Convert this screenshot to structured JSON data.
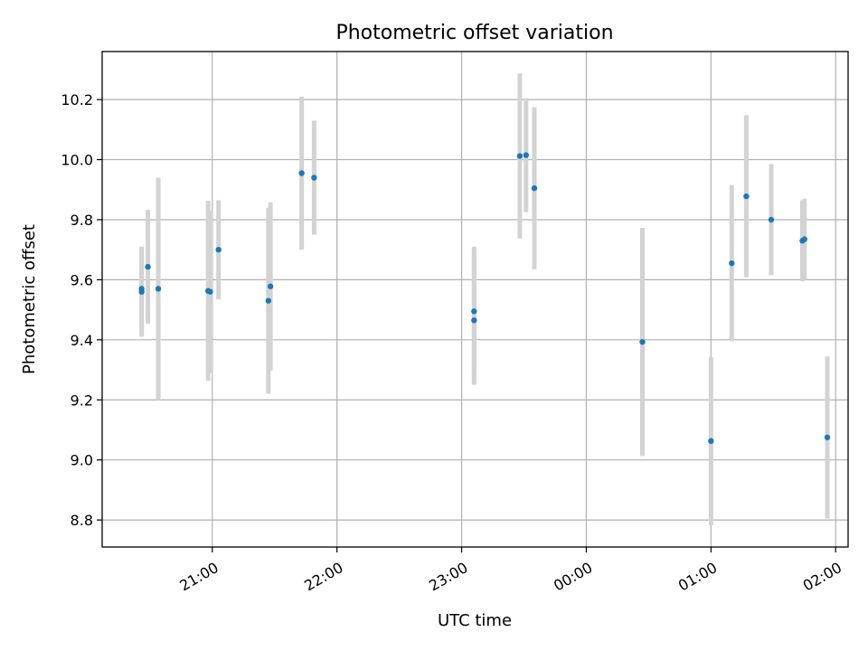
{
  "chart_data": {
    "type": "scatter",
    "title": "Photometric offset variation",
    "xlabel": "UTC time",
    "ylabel": "Photometric offset",
    "x_axis_type": "time",
    "xlim": [
      "20:07",
      "02:06"
    ],
    "ylim": [
      8.71,
      10.36
    ],
    "x_ticks": [
      {
        "time": "21:00",
        "label": "21:00"
      },
      {
        "time": "22:00",
        "label": "22:00"
      },
      {
        "time": "23:00",
        "label": "23:00"
      },
      {
        "time": "24:00",
        "label": "00:00"
      },
      {
        "time": "25:00",
        "label": "01:00"
      },
      {
        "time": "26:00",
        "label": "02:00"
      }
    ],
    "y_ticks": [
      {
        "value": 8.8,
        "label": "8.8"
      },
      {
        "value": 9.0,
        "label": "9.0"
      },
      {
        "value": 9.2,
        "label": "9.2"
      },
      {
        "value": 9.4,
        "label": "9.4"
      },
      {
        "value": 9.6,
        "label": "9.6"
      },
      {
        "value": 9.8,
        "label": "9.8"
      },
      {
        "value": 10.0,
        "label": "10.0"
      },
      {
        "value": 10.2,
        "label": "10.2"
      }
    ],
    "grid": true,
    "marker_color": "#1f77b4",
    "errorbar_color": "#d3d3d3",
    "points": [
      {
        "time": "20:26",
        "y": 9.56,
        "err": 0.15
      },
      {
        "time": "20:26",
        "y": 9.57,
        "err": 0.14
      },
      {
        "time": "20:29",
        "y": 9.643,
        "err": 0.19
      },
      {
        "time": "20:34",
        "y": 9.57,
        "err": 0.37
      },
      {
        "time": "20:58",
        "y": 9.563,
        "err": 0.3
      },
      {
        "time": "20:59",
        "y": 9.56,
        "err": 0.27
      },
      {
        "time": "21:03",
        "y": 9.7,
        "err": 0.165
      },
      {
        "time": "21:27",
        "y": 9.53,
        "err": 0.31
      },
      {
        "time": "21:28",
        "y": 9.578,
        "err": 0.28
      },
      {
        "time": "21:43",
        "y": 9.955,
        "err": 0.255
      },
      {
        "time": "21:49",
        "y": 9.94,
        "err": 0.19
      },
      {
        "time": "23:06",
        "y": 9.495,
        "err": 0.215
      },
      {
        "time": "23:06",
        "y": 9.465,
        "err": 0.215
      },
      {
        "time": "23:28",
        "y": 10.012,
        "err": 0.275
      },
      {
        "time": "23:31",
        "y": 10.015,
        "err": 0.19
      },
      {
        "time": "23:35",
        "y": 9.905,
        "err": 0.27
      },
      {
        "time": "00:27",
        "y": 9.393,
        "err": 0.38
      },
      {
        "time": "01:00",
        "y": 9.063,
        "err": 0.28
      },
      {
        "time": "01:10",
        "y": 9.655,
        "err": 0.26
      },
      {
        "time": "01:17",
        "y": 9.878,
        "err": 0.27
      },
      {
        "time": "01:29",
        "y": 9.8,
        "err": 0.185
      },
      {
        "time": "01:44",
        "y": 9.73,
        "err": 0.135
      },
      {
        "time": "01:45",
        "y": 9.735,
        "err": 0.135
      },
      {
        "time": "01:56",
        "y": 9.075,
        "err": 0.27
      }
    ]
  }
}
